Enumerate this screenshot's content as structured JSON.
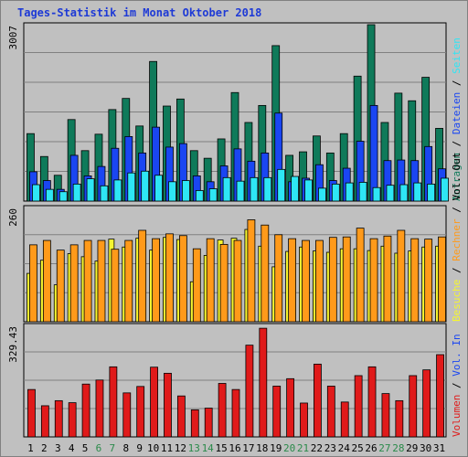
{
  "title": "Tages-Statistik im Monat Oktober 2018",
  "colors": {
    "anfragen": "#0f7a5a",
    "dateien": "#1a46f2",
    "seiten": "#2ee6f5",
    "besuche": "#f5f530",
    "rechner": "#ff9a1a",
    "volumen": "#e01a1a",
    "weekend_label": "#2a8a4a",
    "weekday_label": "#000000"
  },
  "x_labels": [
    "1",
    "2",
    "3",
    "4",
    "5",
    "6",
    "7",
    "8",
    "9",
    "10",
    "11",
    "12",
    "13",
    "14",
    "15",
    "16",
    "17",
    "18",
    "19",
    "20",
    "21",
    "22",
    "23",
    "24",
    "25",
    "26",
    "27",
    "28",
    "29",
    "30",
    "31"
  ],
  "weekend_days": [
    6,
    7,
    13,
    14,
    20,
    21,
    27,
    28
  ],
  "legend": {
    "panel1": [
      {
        "text": "Anfragen",
        "color_key": "anfragen"
      },
      {
        "text": " / ",
        "color_key": "weekday_label"
      },
      {
        "text": "Dateien",
        "color_key": "dateien"
      },
      {
        "text": " / ",
        "color_key": "weekday_label"
      },
      {
        "text": "Seiten",
        "color_key": "seiten"
      }
    ],
    "panel2": [
      {
        "text": "Besuche",
        "color_key": "besuche"
      },
      {
        "text": " / ",
        "color_key": "weekday_label"
      },
      {
        "text": "Rechner",
        "color_key": "rechner"
      },
      {
        "text": " / ",
        "color_key": "weekday_label"
      },
      {
        "text": "Vol. Out",
        "color_key": "weekday_label"
      }
    ],
    "panel3": [
      {
        "text": "Volumen",
        "color_key": "volumen"
      },
      {
        "text": " / ",
        "color_key": "weekday_label"
      },
      {
        "text": "Vol. In",
        "color_key": "dateien"
      }
    ]
  },
  "chart_data": [
    {
      "type": "bar",
      "ylabel_max": "3007",
      "ylim": [
        0,
        3007
      ],
      "series": [
        {
          "name": "Anfragen",
          "color_key": "anfragen",
          "values": [
            1150,
            760,
            440,
            1390,
            860,
            1140,
            1560,
            1750,
            1280,
            2380,
            1620,
            1740,
            860,
            730,
            1060,
            1850,
            1340,
            1630,
            2650,
            780,
            840,
            1110,
            820,
            1150,
            2130,
            3007,
            1340,
            1840,
            1710,
            2110,
            1240
          ]
        },
        {
          "name": "Dateien",
          "color_key": "dateien",
          "values": [
            500,
            350,
            200,
            780,
            430,
            590,
            900,
            1100,
            820,
            1260,
            920,
            980,
            430,
            330,
            600,
            890,
            680,
            820,
            1500,
            330,
            390,
            620,
            350,
            560,
            1020,
            1630,
            690,
            700,
            690,
            930,
            550
          ]
        },
        {
          "name": "Seiten",
          "color_key": "seiten",
          "values": [
            280,
            200,
            160,
            290,
            380,
            260,
            360,
            480,
            510,
            440,
            330,
            350,
            180,
            210,
            400,
            340,
            400,
            400,
            540,
            420,
            360,
            220,
            290,
            310,
            320,
            230,
            270,
            280,
            310,
            290,
            390
          ]
        }
      ]
    },
    {
      "type": "bar",
      "ylabel_max": "260",
      "ylim": [
        0,
        260
      ],
      "series": [
        {
          "name": "Besuche",
          "color_key": "besuche",
          "values": [
            110,
            140,
            84,
            155,
            148,
            138,
            188,
            170,
            190,
            163,
            192,
            187,
            91,
            151,
            186,
            190,
            210,
            172,
            125,
            160,
            170,
            161,
            158,
            166,
            166,
            162,
            172,
            156,
            161,
            170,
            172
          ]
        },
        {
          "name": "Rechner",
          "color_key": "rechner",
          "values": [
            175,
            185,
            163,
            175,
            185,
            185,
            165,
            185,
            208,
            189,
            200,
            196,
            166,
            189,
            176,
            185,
            232,
            220,
            198,
            189,
            185,
            185,
            192,
            193,
            213,
            189,
            195,
            208,
            189,
            188,
            193
          ]
        }
      ]
    },
    {
      "type": "bar",
      "ylabel_max": "329.43",
      "ylim": [
        0,
        329.43
      ],
      "series": [
        {
          "name": "Volumen",
          "color_key": "volumen",
          "values": [
            140,
            92,
            107,
            101,
            156,
            168,
            207,
            130,
            149,
            206,
            188,
            121,
            80,
            85,
            158,
            140,
            271,
            321,
            150,
            172,
            100,
            215,
            150,
            103,
            181,
            207,
            128,
            107,
            181,
            198,
            243
          ]
        }
      ]
    }
  ]
}
